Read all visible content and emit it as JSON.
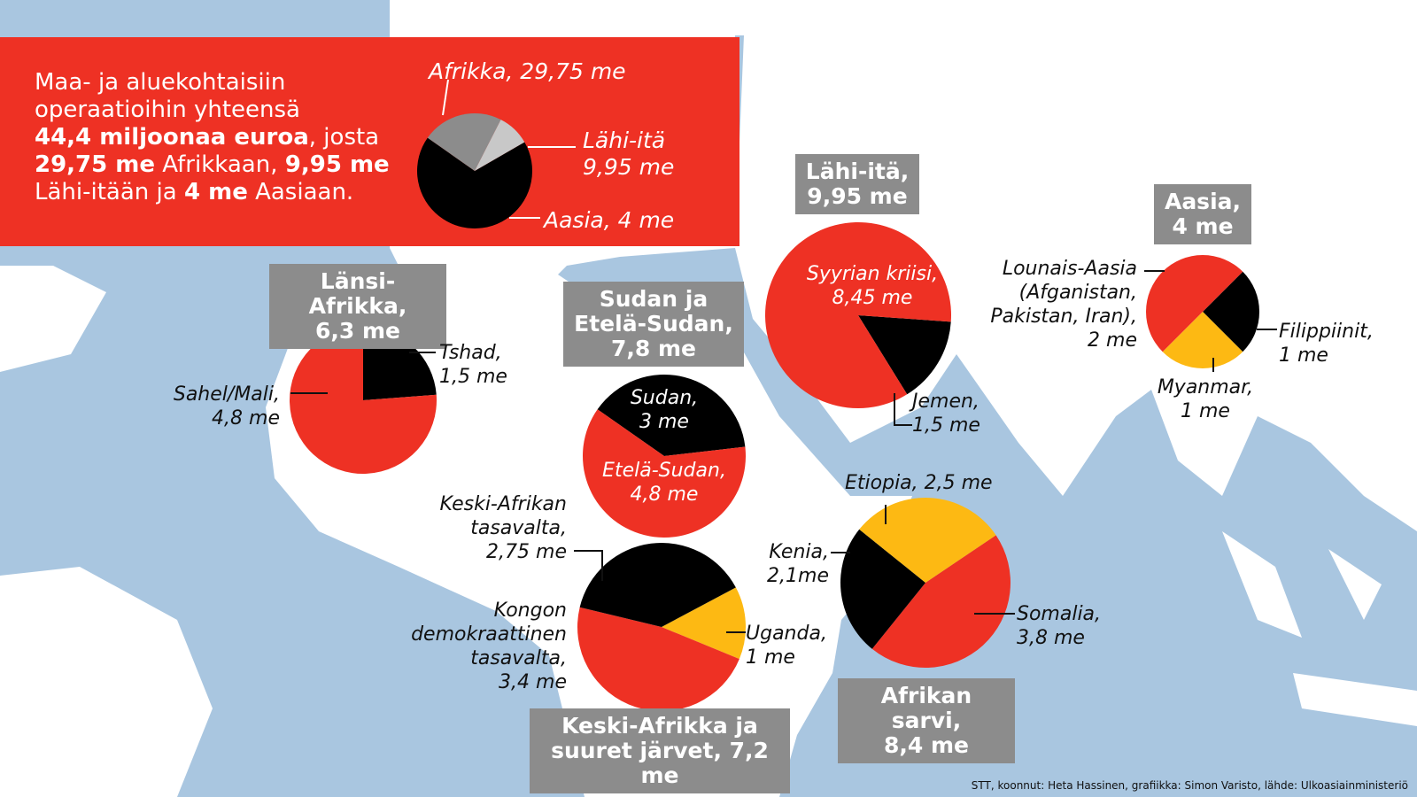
{
  "intro": {
    "line1": "Maa- ja aluekohtaisiin",
    "line2": "operaatioihin yhteensä",
    "total": "44,4 miljoonaa euroa",
    "after_total": ", josta",
    "africa_amt": "29,75 me",
    "africa_word": " Afrikkaan, ",
    "mideast_amt": "9,95 me",
    "mideast_word": "Lähi-itään ja ",
    "asia_amt": "4 me",
    "asia_word": " Aasiaan."
  },
  "source": "STT, koonnut: Heta Hassinen, grafiikka: Simon Varisto, lähde: Ulkoasiainministeriö",
  "colors": {
    "red": "#ee3124",
    "black": "#000000",
    "yellow": "#fdb913",
    "grey_dark": "#8c8c8c",
    "grey_light": "#c8c8c8",
    "sea": "#a9c6e0",
    "land": "#ffffff"
  },
  "chart_data": [
    {
      "type": "pie",
      "title": "",
      "slices": [
        {
          "label": "Afrikka, 29,75 me",
          "value": 29.75,
          "color": "#000000"
        },
        {
          "label": "Lähi-itä\n9,95 me",
          "value": 9.95,
          "color": "#8c8c8c"
        },
        {
          "label": "Aasia, 4 me",
          "value": 4,
          "color": "#c8c8c8"
        }
      ]
    },
    {
      "type": "pie",
      "title": "Länsi-Afrikka,\n6,3 me",
      "slices": [
        {
          "label": "Tshad,\n1,5 me",
          "value": 1.5,
          "color": "#000000"
        },
        {
          "label": "Sahel/Mali,\n4,8 me",
          "value": 4.8,
          "color": "#ee3124"
        }
      ]
    },
    {
      "type": "pie",
      "title": "Sudan ja\nEtelä-Sudan,\n7,8 me",
      "slices": [
        {
          "label": "Sudan,\n3 me",
          "value": 3,
          "color": "#000000"
        },
        {
          "label": "Etelä-Sudan,\n4,8 me",
          "value": 4.8,
          "color": "#ee3124"
        }
      ]
    },
    {
      "type": "pie",
      "title": "Lähi-itä,\n9,95 me",
      "slices": [
        {
          "label": "Jemen,\n1,5 me",
          "value": 1.5,
          "color": "#000000"
        },
        {
          "label": "Syyrian kriisi,\n8,45 me",
          "value": 8.45,
          "color": "#ee3124"
        }
      ]
    },
    {
      "type": "pie",
      "title": "Aasia,\n4 me",
      "slices": [
        {
          "label": "Filippiinit,\n1 me",
          "value": 1,
          "color": "#000000"
        },
        {
          "label": "Myanmar,\n1 me",
          "value": 1,
          "color": "#fdb913"
        },
        {
          "label": "Lounais-Aasia\n(Afganistan,\nPakistan, Iran),\n2 me",
          "value": 2,
          "color": "#ee3124"
        }
      ]
    },
    {
      "type": "pie",
      "title": "Keski-Afrikka ja\nsuuret järvet, 7,2 me",
      "slices": [
        {
          "label": "Uganda,\n1 me",
          "value": 1,
          "color": "#fdb913"
        },
        {
          "label": "Kongon\ndemokraattinen\ntasavalta,\n3,4  me",
          "value": 3.4,
          "color": "#ee3124"
        },
        {
          "label": "Keski-Afrikan\ntasavalta,\n2,75 me",
          "value": 2.75,
          "color": "#000000"
        }
      ]
    },
    {
      "type": "pie",
      "title": "Afrikan sarvi,\n8,4 me",
      "slices": [
        {
          "label": "Somalia,\n3,8 me",
          "value": 3.8,
          "color": "#ee3124"
        },
        {
          "label": "Kenia,\n2,1me",
          "value": 2.1,
          "color": "#000000"
        },
        {
          "label": "Etiopia, 2,5 me",
          "value": 2.5,
          "color": "#fdb913"
        }
      ]
    }
  ]
}
